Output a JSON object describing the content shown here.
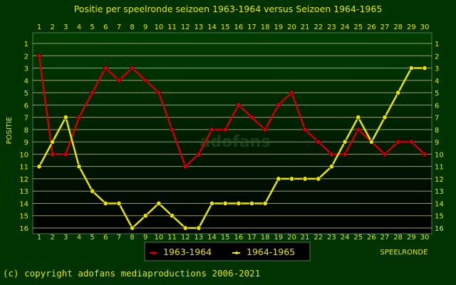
{
  "colors": {
    "background": "#003300",
    "plot_background": "#000000",
    "plot_band_top": "#003d00",
    "grid": "#cccc99",
    "text": "#e6e600",
    "series_1": "#cc0000",
    "series_2": "#e6e600"
  },
  "footer": {
    "copyright": "(c) copyright adofans mediaproductions 2006-2021"
  },
  "watermark": "adofans",
  "chart_data": {
    "type": "line",
    "title": "Positie per speelronde seizoen 1963-1964 versus Seizoen 1964-1965",
    "xlabel": "SPEELRONDE",
    "ylabel": "POSITIE",
    "x": [
      1,
      2,
      3,
      4,
      5,
      6,
      7,
      8,
      9,
      10,
      11,
      12,
      13,
      14,
      15,
      16,
      17,
      18,
      19,
      20,
      21,
      22,
      23,
      24,
      25,
      26,
      27,
      28,
      29,
      30
    ],
    "xlim": [
      1,
      30
    ],
    "ylim": [
      16,
      1
    ],
    "y_inverted": true,
    "y_ticks": [
      1,
      2,
      3,
      4,
      5,
      6,
      7,
      8,
      9,
      10,
      11,
      12,
      13,
      14,
      15,
      16
    ],
    "grid": true,
    "legend_position": "bottom",
    "series": [
      {
        "name": "1963-1964",
        "color": "#cc0000",
        "values": [
          2,
          10,
          10,
          7,
          5,
          3,
          4,
          3,
          4,
          5,
          8,
          11,
          10,
          8,
          8,
          6,
          7,
          8,
          6,
          5,
          8,
          9,
          10,
          10,
          8,
          9,
          10,
          9,
          9,
          10
        ]
      },
      {
        "name": "1964-1965",
        "color": "#e6e600",
        "values": [
          11,
          9,
          7,
          11,
          13,
          14,
          14,
          16,
          15,
          14,
          15,
          16,
          16,
          14,
          14,
          14,
          14,
          14,
          12,
          12,
          12,
          12,
          11,
          9,
          7,
          9,
          7,
          5,
          3,
          3
        ]
      }
    ]
  }
}
